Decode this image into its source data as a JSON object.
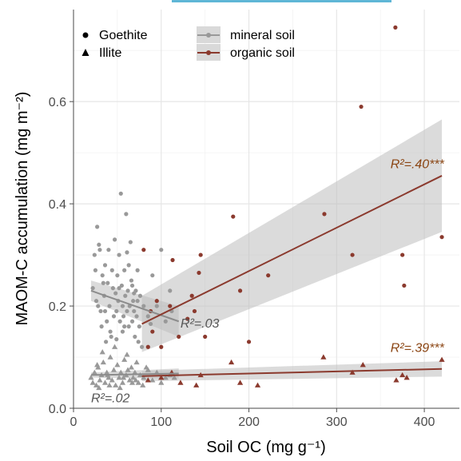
{
  "chart_data": {
    "type": "scatter",
    "xlabel": "Soil OC (mg g⁻¹)",
    "ylabel": "MAOM-C accumulation (mg m⁻²)",
    "xlim": [
      0,
      440
    ],
    "ylim": [
      0,
      0.78
    ],
    "x_ticks": [
      0,
      100,
      200,
      300,
      400
    ],
    "y_ticks": [
      0.0,
      0.2,
      0.4,
      0.6
    ],
    "x_tick_labels": [
      "0",
      "100",
      "200",
      "300",
      "400"
    ],
    "y_tick_labels": [
      "0.0",
      "0.2",
      "0.4",
      "0.6"
    ],
    "grid": true,
    "legend_placement": "top-left",
    "colors": {
      "mineral": "#999999",
      "organic": "#8b3a2e"
    },
    "shape_legend": [
      {
        "label": "Goethite",
        "shape": "circle"
      },
      {
        "label": "Illite",
        "shape": "triangle"
      }
    ],
    "color_legend": [
      {
        "label": "mineral soil",
        "color": "#999999"
      },
      {
        "label": "organic soil",
        "color": "#8b3a2e"
      }
    ],
    "series": [
      {
        "name": "mineral soil",
        "mineral": "Goethite",
        "points": [
          [
            22,
            0.235
          ],
          [
            24,
            0.3
          ],
          [
            26,
            0.21
          ],
          [
            27,
            0.355
          ],
          [
            29,
            0.32
          ],
          [
            31,
            0.19
          ],
          [
            32,
            0.16
          ],
          [
            33,
            0.26
          ],
          [
            35,
            0.22
          ],
          [
            36,
            0.28
          ],
          [
            38,
            0.17
          ],
          [
            39,
            0.245
          ],
          [
            40,
            0.31
          ],
          [
            41,
            0.2
          ],
          [
            42,
            0.15
          ],
          [
            44,
            0.27
          ],
          [
            45,
            0.235
          ],
          [
            46,
            0.18
          ],
          [
            47,
            0.33
          ],
          [
            48,
            0.225
          ],
          [
            49,
            0.19
          ],
          [
            50,
            0.26
          ],
          [
            51,
            0.21
          ],
          [
            52,
            0.3
          ],
          [
            53,
            0.17
          ],
          [
            54,
            0.42
          ],
          [
            55,
            0.24
          ],
          [
            56,
            0.2
          ],
          [
            57,
            0.18
          ],
          [
            58,
            0.27
          ],
          [
            59,
            0.22
          ],
          [
            60,
            0.38
          ],
          [
            61,
            0.19
          ],
          [
            62,
            0.23
          ],
          [
            63,
            0.16
          ],
          [
            64,
            0.2
          ],
          [
            65,
            0.325
          ],
          [
            66,
            0.25
          ],
          [
            67,
            0.17
          ],
          [
            68,
            0.21
          ],
          [
            69,
            0.19
          ],
          [
            70,
            0.14
          ],
          [
            71,
            0.23
          ],
          [
            72,
            0.18
          ],
          [
            73,
            0.21
          ],
          [
            74,
            0.13
          ],
          [
            75,
            0.16
          ],
          [
            76,
            0.22
          ],
          [
            78,
            0.12
          ],
          [
            80,
            0.2
          ],
          [
            85,
            0.18
          ],
          [
            88,
            0.165
          ],
          [
            90,
            0.26
          ],
          [
            95,
            0.2
          ],
          [
            100,
            0.31
          ],
          [
            105,
            0.17
          ],
          [
            110,
            0.23
          ],
          [
            112,
            0.19
          ],
          [
            28,
            0.2
          ],
          [
            34,
            0.245
          ],
          [
            37,
            0.13
          ],
          [
            43,
            0.14
          ],
          [
            49,
            0.135
          ],
          [
            56,
            0.15
          ],
          [
            63,
            0.28
          ],
          [
            69,
            0.225
          ],
          [
            25,
            0.27
          ],
          [
            30,
            0.31
          ],
          [
            36,
            0.19
          ],
          [
            52,
            0.235
          ],
          [
            58,
            0.16
          ],
          [
            61,
            0.305
          ],
          [
            67,
            0.24
          ],
          [
            73,
            0.27
          ]
        ]
      },
      {
        "name": "mineral soil",
        "mineral": "Illite",
        "points": [
          [
            20,
            0.06
          ],
          [
            22,
            0.05
          ],
          [
            24,
            0.07
          ],
          [
            26,
            0.045
          ],
          [
            28,
            0.08
          ],
          [
            30,
            0.055
          ],
          [
            32,
            0.065
          ],
          [
            34,
            0.09
          ],
          [
            36,
            0.05
          ],
          [
            38,
            0.07
          ],
          [
            40,
            0.06
          ],
          [
            42,
            0.1
          ],
          [
            44,
            0.055
          ],
          [
            46,
            0.075
          ],
          [
            48,
            0.045
          ],
          [
            50,
            0.085
          ],
          [
            52,
            0.06
          ],
          [
            54,
            0.07
          ],
          [
            56,
            0.05
          ],
          [
            58,
            0.095
          ],
          [
            60,
            0.065
          ],
          [
            62,
            0.075
          ],
          [
            64,
            0.055
          ],
          [
            66,
            0.08
          ],
          [
            68,
            0.06
          ],
          [
            70,
            0.07
          ],
          [
            72,
            0.09
          ],
          [
            74,
            0.05
          ],
          [
            76,
            0.065
          ],
          [
            80,
            0.06
          ],
          [
            85,
            0.075
          ],
          [
            90,
            0.055
          ],
          [
            95,
            0.07
          ],
          [
            100,
            0.05
          ],
          [
            105,
            0.06
          ],
          [
            110,
            0.065
          ],
          [
            115,
            0.06
          ],
          [
            29,
            0.04
          ],
          [
            41,
            0.045
          ],
          [
            53,
            0.04
          ],
          [
            67,
            0.05
          ],
          [
            79,
            0.045
          ],
          [
            33,
            0.11
          ],
          [
            47,
            0.12
          ],
          [
            61,
            0.105
          ],
          [
            27,
            0.085
          ],
          [
            39,
            0.065
          ],
          [
            57,
            0.06
          ],
          [
            71,
            0.055
          ],
          [
            83,
            0.08
          ]
        ]
      },
      {
        "name": "organic soil",
        "mineral": "Goethite",
        "points": [
          [
            80,
            0.31
          ],
          [
            85,
            0.12
          ],
          [
            88,
            0.19
          ],
          [
            90,
            0.15
          ],
          [
            95,
            0.21
          ],
          [
            100,
            0.12
          ],
          [
            110,
            0.2
          ],
          [
            113,
            0.29
          ],
          [
            120,
            0.14
          ],
          [
            130,
            0.175
          ],
          [
            135,
            0.22
          ],
          [
            138,
            0.19
          ],
          [
            143,
            0.265
          ],
          [
            145,
            0.3
          ],
          [
            150,
            0.14
          ],
          [
            182,
            0.375
          ],
          [
            190,
            0.23
          ],
          [
            200,
            0.13
          ],
          [
            222,
            0.26
          ],
          [
            286,
            0.38
          ],
          [
            318,
            0.3
          ],
          [
            328,
            0.59
          ],
          [
            367,
            0.745
          ],
          [
            375,
            0.3
          ],
          [
            377,
            0.24
          ],
          [
            420,
            0.335
          ]
        ]
      },
      {
        "name": "organic soil",
        "mineral": "Illite",
        "points": [
          [
            85,
            0.055
          ],
          [
            100,
            0.06
          ],
          [
            112,
            0.07
          ],
          [
            122,
            0.05
          ],
          [
            140,
            0.045
          ],
          [
            145,
            0.065
          ],
          [
            180,
            0.09
          ],
          [
            190,
            0.05
          ],
          [
            210,
            0.045
          ],
          [
            285,
            0.1
          ],
          [
            318,
            0.07
          ],
          [
            330,
            0.085
          ],
          [
            368,
            0.055
          ],
          [
            375,
            0.065
          ],
          [
            380,
            0.06
          ],
          [
            420,
            0.095
          ]
        ]
      }
    ],
    "fits": [
      {
        "name": "mineral soil",
        "mineral": "Goethite",
        "x": [
          20,
          120
        ],
        "y": [
          0.23,
          0.17
        ],
        "ci_low": [
          0.21,
          0.14
        ],
        "ci_high": [
          0.25,
          0.2
        ]
      },
      {
        "name": "mineral soil",
        "mineral": "Illite",
        "x": [
          20,
          120
        ],
        "y": [
          0.065,
          0.068
        ],
        "ci_low": [
          0.06,
          0.058
        ],
        "ci_high": [
          0.07,
          0.078
        ]
      },
      {
        "name": "organic soil",
        "mineral": "Goethite",
        "x": [
          78,
          420
        ],
        "y": [
          0.165,
          0.455
        ],
        "ci_low": [
          0.11,
          0.345
        ],
        "ci_high": [
          0.22,
          0.565
        ]
      },
      {
        "name": "organic soil",
        "mineral": "Illite",
        "x": [
          78,
          420
        ],
        "y": [
          0.063,
          0.077
        ],
        "ci_low": [
          0.053,
          0.062
        ],
        "ci_high": [
          0.073,
          0.092
        ]
      }
    ],
    "annotations": [
      {
        "text": "R²=.40***",
        "x": 392,
        "y": 0.47,
        "color": "organic",
        "anchor": "middle"
      },
      {
        "text": "R²=.39***",
        "x": 392,
        "y": 0.11,
        "color": "organic",
        "anchor": "middle"
      },
      {
        "text": "R²=.03",
        "x": 122,
        "y": 0.158,
        "color": "mineral",
        "anchor": "start"
      },
      {
        "text": "R²=.02",
        "x": 20,
        "y": 0.012,
        "color": "mineral",
        "anchor": "start"
      }
    ]
  }
}
